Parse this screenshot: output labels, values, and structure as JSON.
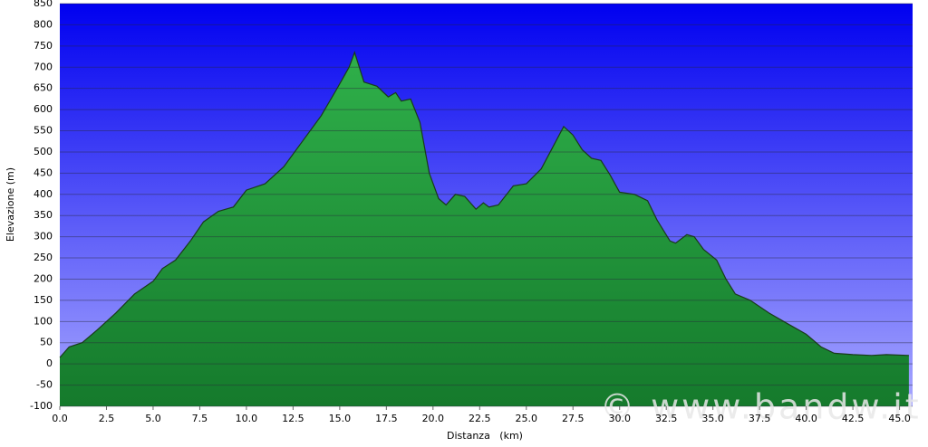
{
  "chart_data": {
    "type": "area",
    "x_label": "Distanza   (km)",
    "y_label": "Elevazione (m)",
    "watermark": "© www.bandw.it",
    "x": [
      0,
      0.5,
      1.2,
      2,
      3,
      4,
      5,
      5.5,
      6.2,
      7,
      7.7,
      8.5,
      9.3,
      10,
      11,
      12,
      13,
      14,
      14.8,
      15.5,
      15.8,
      16.3,
      17,
      17.6,
      18,
      18.3,
      18.8,
      19.3,
      19.8,
      20.3,
      20.7,
      21.2,
      21.7,
      22.3,
      22.7,
      23,
      23.5,
      24.3,
      25,
      25.8,
      26.4,
      27,
      27.5,
      28,
      28.5,
      29,
      29.5,
      30,
      30.8,
      31.5,
      32,
      32.7,
      33,
      33.6,
      34,
      34.5,
      35.2,
      35.7,
      36.2,
      37,
      38,
      39,
      40,
      40.8,
      41.5,
      42.5,
      43.5,
      44.3,
      45.5
    ],
    "values": [
      15,
      40,
      50,
      80,
      120,
      165,
      195,
      225,
      245,
      290,
      335,
      360,
      370,
      410,
      425,
      465,
      525,
      585,
      645,
      700,
      735,
      665,
      655,
      630,
      640,
      620,
      625,
      570,
      450,
      390,
      375,
      400,
      395,
      365,
      380,
      370,
      375,
      420,
      425,
      460,
      510,
      560,
      540,
      505,
      485,
      480,
      445,
      405,
      400,
      385,
      340,
      290,
      285,
      305,
      300,
      270,
      245,
      200,
      165,
      150,
      120,
      95,
      70,
      40,
      25,
      22,
      20,
      22,
      20
    ],
    "color": "#1e9a3c",
    "xlim": [
      0,
      45.7
    ],
    "ylim": [
      -100,
      850
    ],
    "xticks": [
      {
        "value": 0,
        "label": "0.0"
      },
      {
        "value": 2.5,
        "label": "2.5"
      },
      {
        "value": 5,
        "label": "5.0"
      },
      {
        "value": 7.5,
        "label": "7.5"
      },
      {
        "value": 10,
        "label": "10.0"
      },
      {
        "value": 12.5,
        "label": "12.5"
      },
      {
        "value": 15,
        "label": "15.0"
      },
      {
        "value": 17.5,
        "label": "17.5"
      },
      {
        "value": 20,
        "label": "20.0"
      },
      {
        "value": 22.5,
        "label": "22.5"
      },
      {
        "value": 25,
        "label": "25.0"
      },
      {
        "value": 27.5,
        "label": "27.5"
      },
      {
        "value": 30,
        "label": "30.0"
      },
      {
        "value": 32.5,
        "label": "32.5"
      },
      {
        "value": 35,
        "label": "35.0"
      },
      {
        "value": 37.5,
        "label": "37.5"
      },
      {
        "value": 40,
        "label": "40.0"
      },
      {
        "value": 42.5,
        "label": "42.5"
      },
      {
        "value": 45,
        "label": "45.0"
      }
    ],
    "yticks": [
      -100,
      -50,
      0,
      50,
      100,
      150,
      200,
      250,
      300,
      350,
      400,
      450,
      500,
      550,
      600,
      650,
      700,
      750,
      800,
      850
    ],
    "grid": true
  }
}
